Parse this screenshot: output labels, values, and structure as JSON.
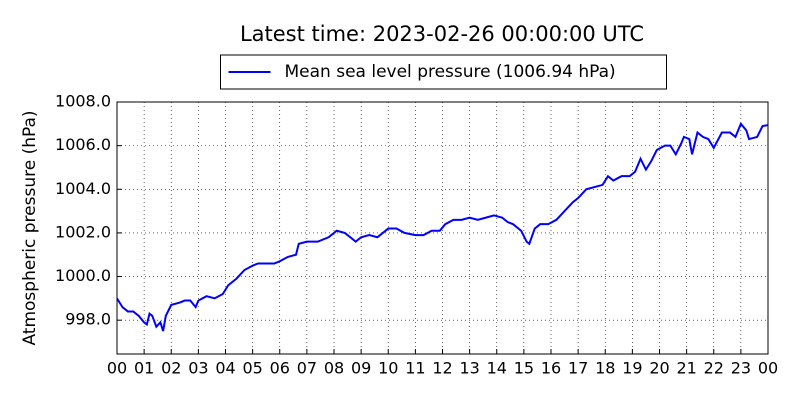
{
  "chart_data": {
    "type": "line",
    "title": "Latest time: 2023-02-26 00:00:00 UTC",
    "y_label": "Atmospheric pressure (hPa)",
    "legend": "top-center",
    "grid": true,
    "x": [
      0,
      0.2,
      0.4,
      0.6,
      0.8,
      1.0,
      1.1,
      1.2,
      1.3,
      1.45,
      1.6,
      1.7,
      1.8,
      2.0,
      2.3,
      2.5,
      2.7,
      2.9,
      3.0,
      3.3,
      3.6,
      3.9,
      4.1,
      4.4,
      4.7,
      5.0,
      5.2,
      5.5,
      5.8,
      6.0,
      6.3,
      6.6,
      6.7,
      7.0,
      7.4,
      7.8,
      8.1,
      8.4,
      8.6,
      8.8,
      9.0,
      9.3,
      9.6,
      9.8,
      10.0,
      10.3,
      10.6,
      11.0,
      11.3,
      11.6,
      11.9,
      12.1,
      12.4,
      12.7,
      13.0,
      13.3,
      13.6,
      13.9,
      14.2,
      14.4,
      14.6,
      14.9,
      15.1,
      15.2,
      15.4,
      15.6,
      15.9,
      16.2,
      16.5,
      16.8,
      17.0,
      17.3,
      17.6,
      17.9,
      18.1,
      18.3,
      18.6,
      18.9,
      19.1,
      19.3,
      19.5,
      19.7,
      19.9,
      20.2,
      20.4,
      20.6,
      20.8,
      20.9,
      21.1,
      21.2,
      21.4,
      21.6,
      21.8,
      22.0,
      22.3,
      22.6,
      22.8,
      23.0,
      23.2,
      23.3,
      23.6,
      23.8,
      24.0
    ],
    "series": [
      {
        "name": "Mean sea level pressure (1006.94 hPa)",
        "color": "#0000ff",
        "values": [
          999.0,
          998.6,
          998.4,
          998.4,
          998.2,
          997.9,
          997.8,
          998.3,
          998.2,
          997.7,
          997.9,
          997.5,
          998.2,
          998.7,
          998.8,
          998.9,
          998.9,
          998.6,
          998.9,
          999.1,
          999.0,
          999.2,
          999.6,
          999.9,
          1000.3,
          1000.5,
          1000.6,
          1000.6,
          1000.6,
          1000.7,
          1000.9,
          1001.0,
          1001.5,
          1001.6,
          1001.6,
          1001.8,
          1002.1,
          1002.0,
          1001.8,
          1001.6,
          1001.8,
          1001.9,
          1001.8,
          1002.0,
          1002.2,
          1002.2,
          1002.0,
          1001.9,
          1001.9,
          1002.1,
          1002.1,
          1002.4,
          1002.6,
          1002.6,
          1002.7,
          1002.6,
          1002.7,
          1002.8,
          1002.7,
          1002.5,
          1002.4,
          1002.1,
          1001.6,
          1001.5,
          1002.2,
          1002.4,
          1002.4,
          1002.6,
          1003.0,
          1003.4,
          1003.6,
          1004.0,
          1004.1,
          1004.2,
          1004.6,
          1004.4,
          1004.6,
          1004.6,
          1004.8,
          1005.4,
          1004.9,
          1005.3,
          1005.8,
          1006.0,
          1006.0,
          1005.6,
          1006.1,
          1006.4,
          1006.3,
          1005.6,
          1006.6,
          1006.4,
          1006.3,
          1005.9,
          1006.6,
          1006.6,
          1006.4,
          1007.0,
          1006.7,
          1006.3,
          1006.4,
          1006.9,
          1006.94
        ]
      }
    ],
    "xlim": [
      0,
      24
    ],
    "xticks": [
      {
        "value": 0,
        "label": "00"
      },
      {
        "value": 1,
        "label": "01"
      },
      {
        "value": 2,
        "label": "02"
      },
      {
        "value": 3,
        "label": "03"
      },
      {
        "value": 4,
        "label": "04"
      },
      {
        "value": 5,
        "label": "05"
      },
      {
        "value": 6,
        "label": "06"
      },
      {
        "value": 7,
        "label": "07"
      },
      {
        "value": 8,
        "label": "08"
      },
      {
        "value": 9,
        "label": "09"
      },
      {
        "value": 10,
        "label": "10"
      },
      {
        "value": 11,
        "label": "11"
      },
      {
        "value": 12,
        "label": "12"
      },
      {
        "value": 13,
        "label": "13"
      },
      {
        "value": 14,
        "label": "14"
      },
      {
        "value": 15,
        "label": "15"
      },
      {
        "value": 16,
        "label": "16"
      },
      {
        "value": 17,
        "label": "17"
      },
      {
        "value": 18,
        "label": "18"
      },
      {
        "value": 19,
        "label": "19"
      },
      {
        "value": 20,
        "label": "20"
      },
      {
        "value": 21,
        "label": "21"
      },
      {
        "value": 22,
        "label": "22"
      },
      {
        "value": 23,
        "label": "23"
      },
      {
        "value": 24,
        "label": "00"
      }
    ],
    "ylim": [
      996.45,
      1008.0
    ],
    "yticks": [
      {
        "value": 998,
        "label": "998.0"
      },
      {
        "value": 1000,
        "label": "1000.0"
      },
      {
        "value": 1002,
        "label": "1002.0"
      },
      {
        "value": 1004,
        "label": "1004.0"
      },
      {
        "value": 1006,
        "label": "1006.0"
      },
      {
        "value": 1008,
        "label": "1008.0"
      }
    ]
  }
}
